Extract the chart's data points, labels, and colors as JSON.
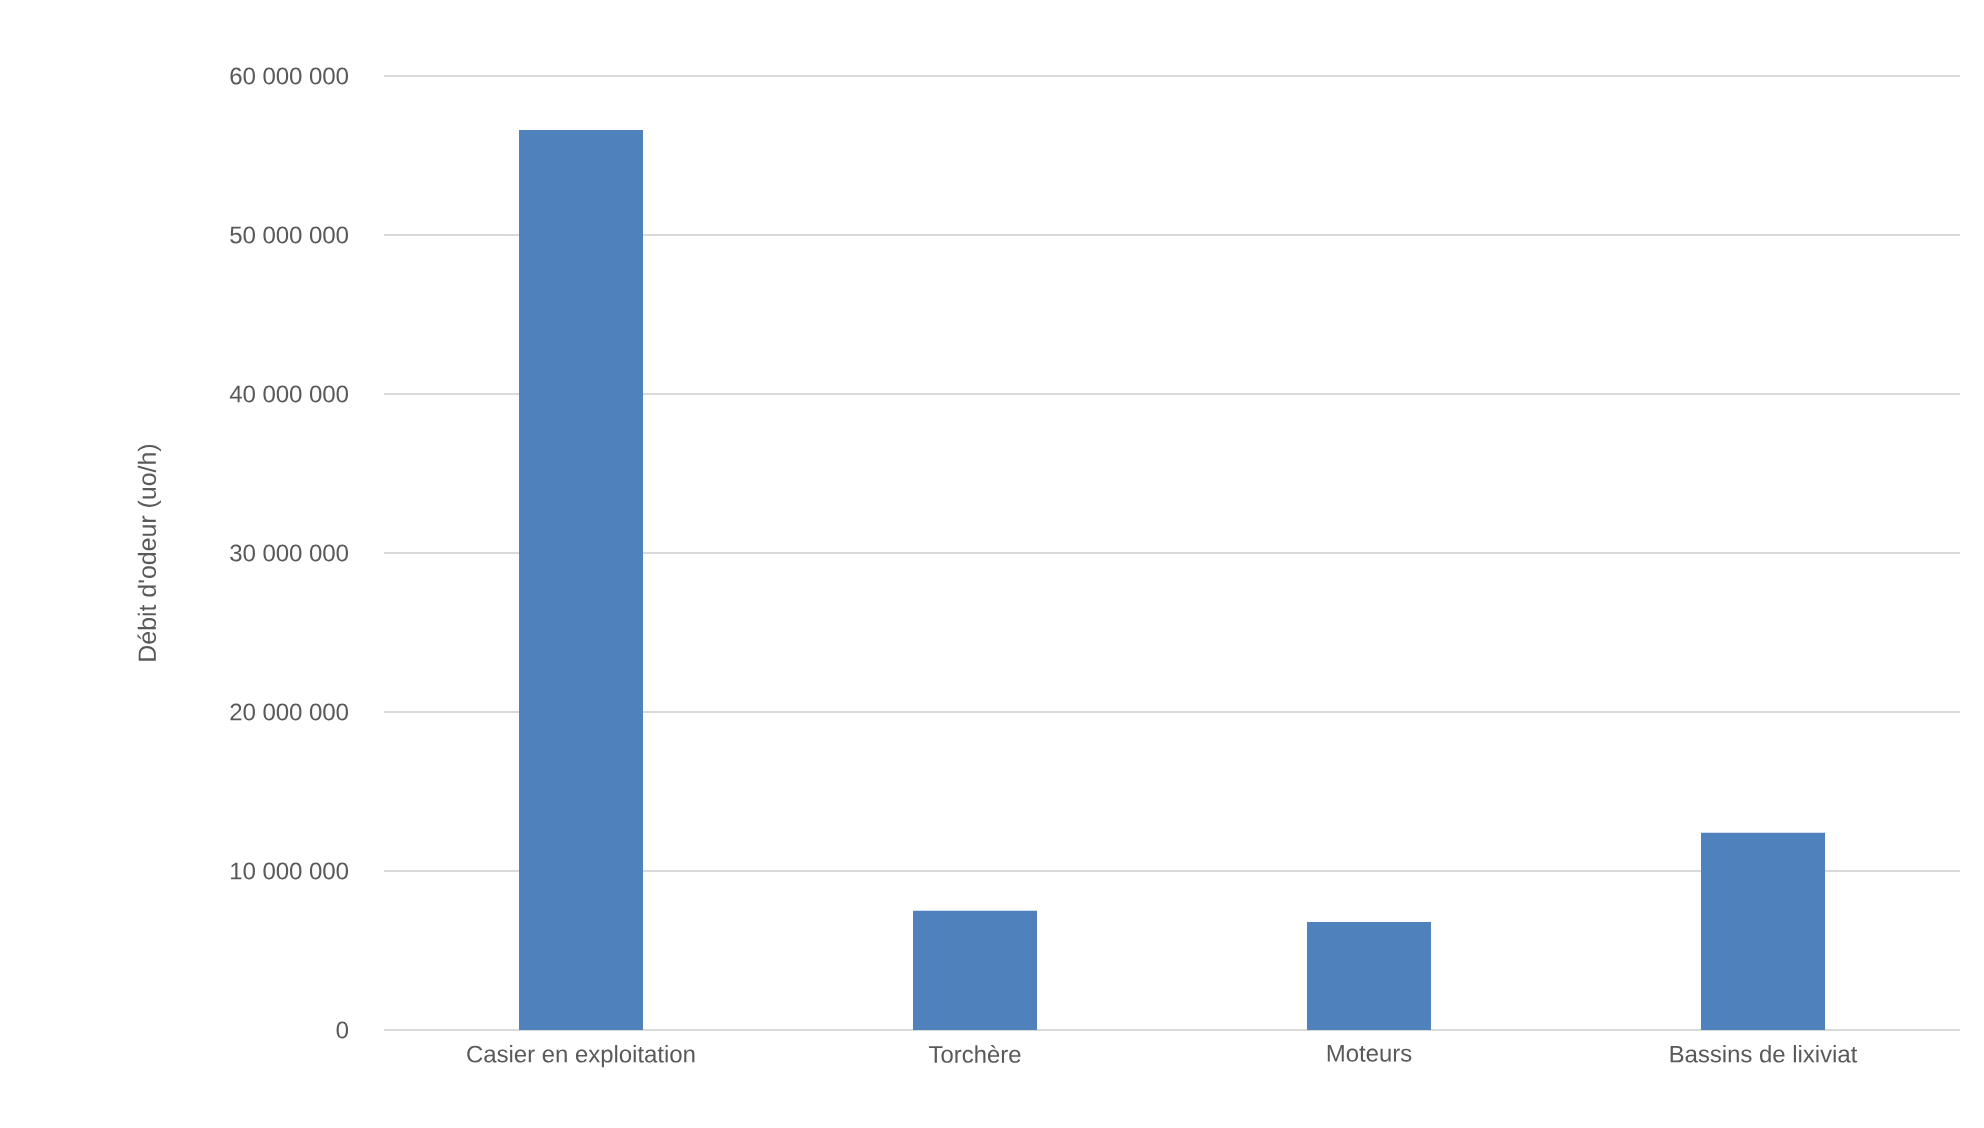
{
  "chart_data": {
    "type": "bar",
    "ylabel": "Débit d'odeur (uo/h)",
    "categories": [
      "Casier en exploitation",
      "Torchère",
      "Moteurs",
      "Bassins de lixiviat"
    ],
    "values": [
      56600000,
      7500000,
      6800000,
      12400000
    ],
    "color": "#4f81bd",
    "ylim": [
      0,
      60000000
    ],
    "yticks": [
      {
        "value": 0,
        "label": "0"
      },
      {
        "value": 10000000,
        "label": "10 000 000"
      },
      {
        "value": 20000000,
        "label": "20 000 000"
      },
      {
        "value": 30000000,
        "label": "30 000 000"
      },
      {
        "value": 40000000,
        "label": "40 000 000"
      },
      {
        "value": 50000000,
        "label": "50 000 000"
      },
      {
        "value": 60000000,
        "label": "60 000 000"
      }
    ],
    "grid": "y"
  }
}
